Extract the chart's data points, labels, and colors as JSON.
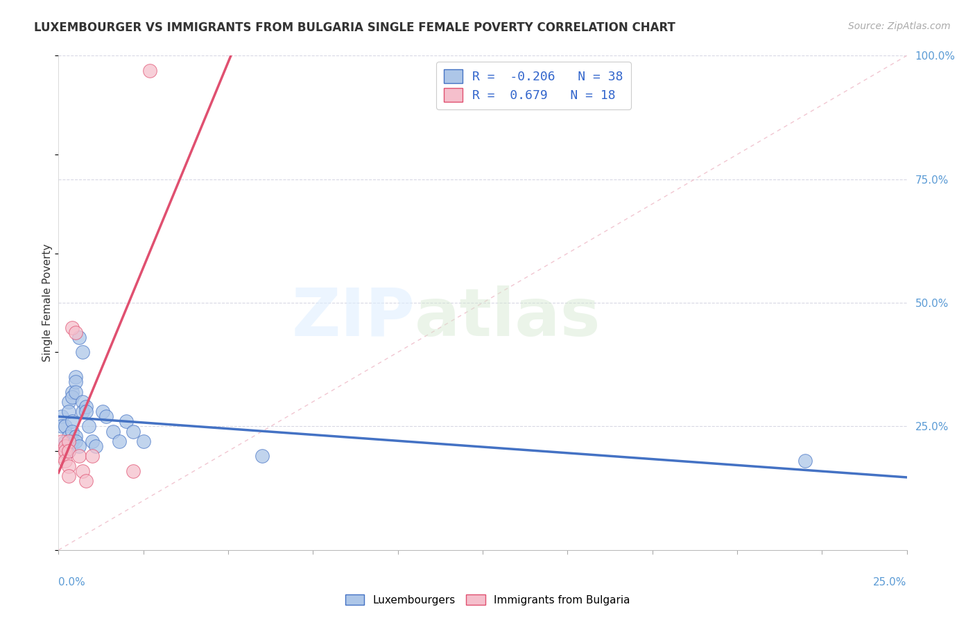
{
  "title": "LUXEMBOURGER VS IMMIGRANTS FROM BULGARIA SINGLE FEMALE POVERTY CORRELATION CHART",
  "source": "Source: ZipAtlas.com",
  "ylabel": "Single Female Poverty",
  "right_yticks": [
    "100.0%",
    "75.0%",
    "50.0%",
    "25.0%"
  ],
  "right_ytick_vals": [
    1.0,
    0.75,
    0.5,
    0.25
  ],
  "blue_color": "#adc6e8",
  "pink_color": "#f5bfcc",
  "blue_line_color": "#4472c4",
  "pink_line_color": "#e05070",
  "diag_color": "#f0c0cc",
  "blue_R": -0.206,
  "blue_N": 38,
  "pink_R": 0.679,
  "pink_N": 18,
  "blue_points": [
    [
      0.001,
      0.27
    ],
    [
      0.001,
      0.25
    ],
    [
      0.002,
      0.25
    ],
    [
      0.002,
      0.22
    ],
    [
      0.002,
      0.21
    ],
    [
      0.003,
      0.3
    ],
    [
      0.003,
      0.28
    ],
    [
      0.003,
      0.23
    ],
    [
      0.003,
      0.2
    ],
    [
      0.004,
      0.32
    ],
    [
      0.004,
      0.31
    ],
    [
      0.004,
      0.26
    ],
    [
      0.004,
      0.24
    ],
    [
      0.004,
      0.22
    ],
    [
      0.005,
      0.35
    ],
    [
      0.005,
      0.34
    ],
    [
      0.005,
      0.32
    ],
    [
      0.005,
      0.23
    ],
    [
      0.005,
      0.22
    ],
    [
      0.006,
      0.43
    ],
    [
      0.006,
      0.21
    ],
    [
      0.007,
      0.4
    ],
    [
      0.007,
      0.3
    ],
    [
      0.007,
      0.28
    ],
    [
      0.008,
      0.29
    ],
    [
      0.008,
      0.28
    ],
    [
      0.009,
      0.25
    ],
    [
      0.01,
      0.22
    ],
    [
      0.011,
      0.21
    ],
    [
      0.013,
      0.28
    ],
    [
      0.014,
      0.27
    ],
    [
      0.016,
      0.24
    ],
    [
      0.018,
      0.22
    ],
    [
      0.02,
      0.26
    ],
    [
      0.022,
      0.24
    ],
    [
      0.025,
      0.22
    ],
    [
      0.06,
      0.19
    ],
    [
      0.22,
      0.18
    ]
  ],
  "pink_points": [
    [
      0.001,
      0.22
    ],
    [
      0.001,
      0.2
    ],
    [
      0.001,
      0.19
    ],
    [
      0.002,
      0.21
    ],
    [
      0.002,
      0.2
    ],
    [
      0.002,
      0.18
    ],
    [
      0.003,
      0.22
    ],
    [
      0.003,
      0.2
    ],
    [
      0.003,
      0.17
    ],
    [
      0.003,
      0.15
    ],
    [
      0.004,
      0.45
    ],
    [
      0.005,
      0.44
    ],
    [
      0.006,
      0.19
    ],
    [
      0.007,
      0.16
    ],
    [
      0.008,
      0.14
    ],
    [
      0.01,
      0.19
    ],
    [
      0.022,
      0.16
    ],
    [
      0.027,
      0.97
    ]
  ],
  "xmin": 0.0,
  "xmax": 0.25,
  "ymin": 0.0,
  "ymax": 1.0,
  "bg_color": "#ffffff",
  "grid_color": "#d8d8e4"
}
